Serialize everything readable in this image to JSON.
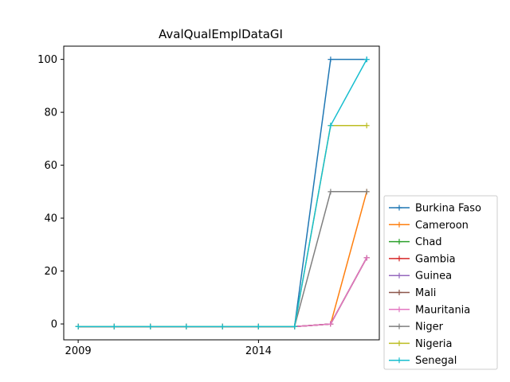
{
  "chart_data": {
    "type": "line",
    "title": "AvalQualEmplDataGI",
    "xlabel": "",
    "ylabel": "",
    "x": [
      2009,
      2010,
      2011,
      2012,
      2013,
      2014,
      2015,
      2016,
      2017
    ],
    "xticks": [
      2009,
      2014
    ],
    "yticks": [
      0,
      20,
      40,
      60,
      80,
      100
    ],
    "xlim": [
      2008.6,
      2017.35
    ],
    "ylim": [
      -6,
      105
    ],
    "grid": false,
    "legend_position": "bottom-right outside",
    "series": [
      {
        "name": "Burkina Faso",
        "color": "#1f77b4",
        "values": [
          -1,
          -1,
          -1,
          -1,
          -1,
          -1,
          -1,
          100,
          100
        ]
      },
      {
        "name": "Cameroon",
        "color": "#ff7f0e",
        "values": [
          -1,
          -1,
          -1,
          -1,
          -1,
          -1,
          -1,
          0,
          50
        ]
      },
      {
        "name": "Chad",
        "color": "#2ca02c",
        "values": [
          -1,
          -1,
          -1,
          -1,
          -1,
          -1,
          -1,
          0,
          25
        ]
      },
      {
        "name": "Gambia",
        "color": "#d62728",
        "values": [
          -1,
          -1,
          -1,
          -1,
          -1,
          -1,
          -1,
          0,
          25
        ]
      },
      {
        "name": "Guinea",
        "color": "#9467bd",
        "values": [
          -1,
          -1,
          -1,
          -1,
          -1,
          -1,
          -1,
          0,
          25
        ]
      },
      {
        "name": "Mali",
        "color": "#8c564b",
        "values": [
          -1,
          -1,
          -1,
          -1,
          -1,
          -1,
          -1,
          0,
          25
        ]
      },
      {
        "name": "Mauritania",
        "color": "#e377c2",
        "values": [
          -1,
          -1,
          -1,
          -1,
          -1,
          -1,
          -1,
          0,
          25
        ]
      },
      {
        "name": "Niger",
        "color": "#7f7f7f",
        "values": [
          -1,
          -1,
          -1,
          -1,
          -1,
          -1,
          -1,
          50,
          50
        ]
      },
      {
        "name": "Nigeria",
        "color": "#bcbd22",
        "values": [
          -1,
          -1,
          -1,
          -1,
          -1,
          -1,
          -1,
          75,
          75
        ]
      },
      {
        "name": "Senegal",
        "color": "#17becf",
        "values": [
          -1,
          -1,
          -1,
          -1,
          -1,
          -1,
          -1,
          75,
          100
        ]
      }
    ]
  }
}
